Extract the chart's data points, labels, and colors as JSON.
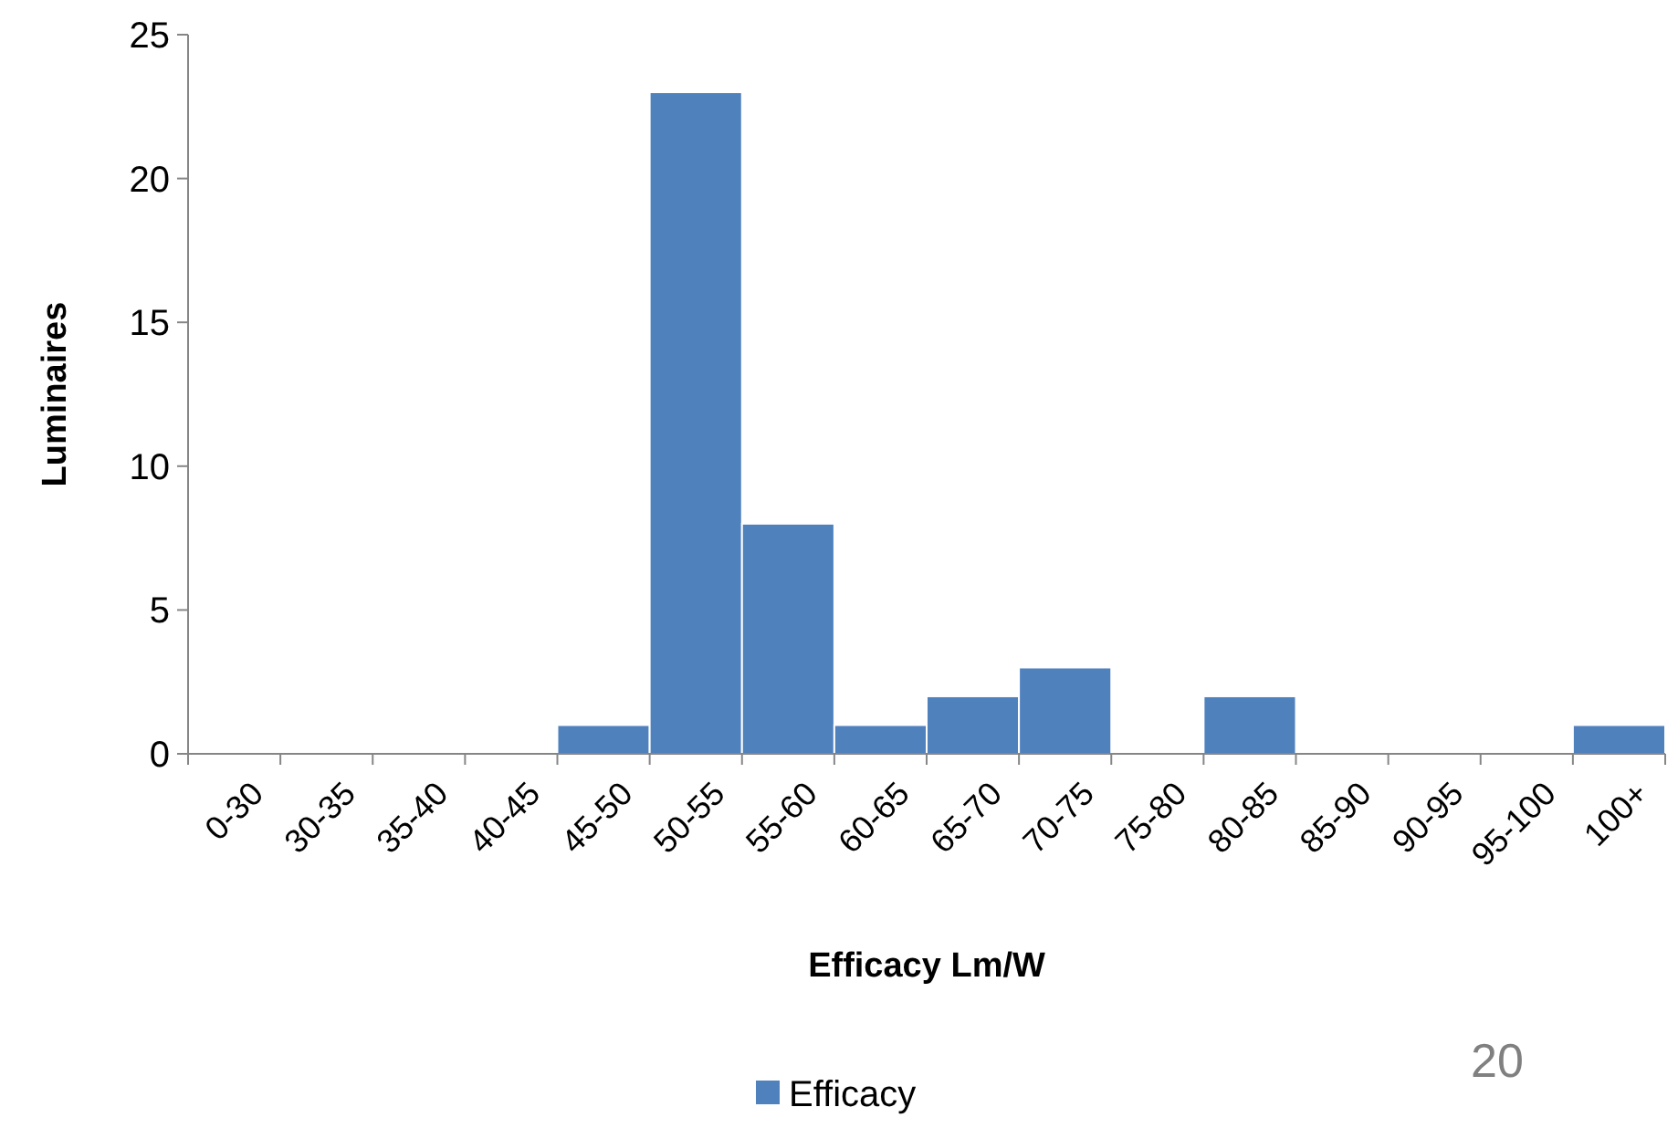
{
  "chart_data": {
    "type": "bar",
    "xlabel": "Efficacy Lm/W",
    "ylabel": "Luminaires",
    "categories": [
      "0-30",
      "30-35",
      "35-40",
      "40-45",
      "45-50",
      "50-55",
      "55-60",
      "60-65",
      "65-70",
      "70-75",
      "75-80",
      "80-85",
      "85-90",
      "90-95",
      "95-100",
      "100+"
    ],
    "series": [
      {
        "name": "Efficacy",
        "color": "#4f81bd",
        "values": [
          0,
          0,
          0,
          0,
          1,
          23,
          8,
          1,
          2,
          3,
          0,
          2,
          0,
          0,
          0,
          1
        ]
      }
    ],
    "ylim": [
      0,
      25
    ],
    "yticks": [
      0,
      5,
      10,
      15,
      20,
      25
    ],
    "grid": false,
    "legend": "bottom",
    "annotations": [
      "20"
    ]
  }
}
